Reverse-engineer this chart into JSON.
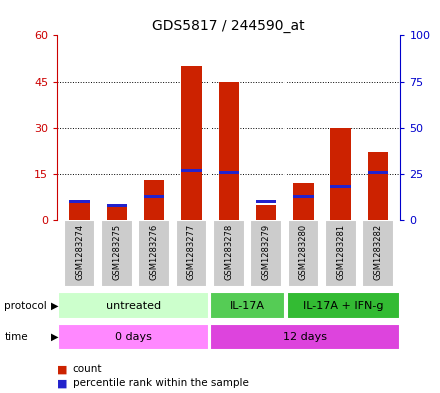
{
  "title": "GDS5817 / 244590_at",
  "samples": [
    "GSM1283274",
    "GSM1283275",
    "GSM1283276",
    "GSM1283277",
    "GSM1283278",
    "GSM1283279",
    "GSM1283280",
    "GSM1283281",
    "GSM1283282"
  ],
  "counts": [
    6,
    5,
    13,
    50,
    45,
    5,
    12,
    30,
    22
  ],
  "percentile_ranks": [
    10,
    8,
    13,
    27,
    26,
    10,
    13,
    18,
    26
  ],
  "ylim_left": [
    0,
    60
  ],
  "ylim_right": [
    0,
    100
  ],
  "yticks_left": [
    0,
    15,
    30,
    45,
    60
  ],
  "yticks_right": [
    0,
    25,
    50,
    75,
    100
  ],
  "protocol_groups": [
    {
      "label": "untreated",
      "start": 0,
      "end": 4,
      "color": "#ccffcc"
    },
    {
      "label": "IL-17A",
      "start": 4,
      "end": 6,
      "color": "#55cc55"
    },
    {
      "label": "IL-17A + IFN-g",
      "start": 6,
      "end": 9,
      "color": "#33bb33"
    }
  ],
  "time_groups": [
    {
      "label": "0 days",
      "start": 0,
      "end": 4,
      "color": "#ff88ff"
    },
    {
      "label": "12 days",
      "start": 4,
      "end": 9,
      "color": "#dd44dd"
    }
  ],
  "bar_color": "#cc2200",
  "blue_color": "#2222cc",
  "tick_color_left": "#cc0000",
  "tick_color_right": "#0000cc",
  "background_color": "#ffffff",
  "plot_bg_color": "#ffffff",
  "sample_box_color": "#cccccc",
  "bar_width": 0.55
}
